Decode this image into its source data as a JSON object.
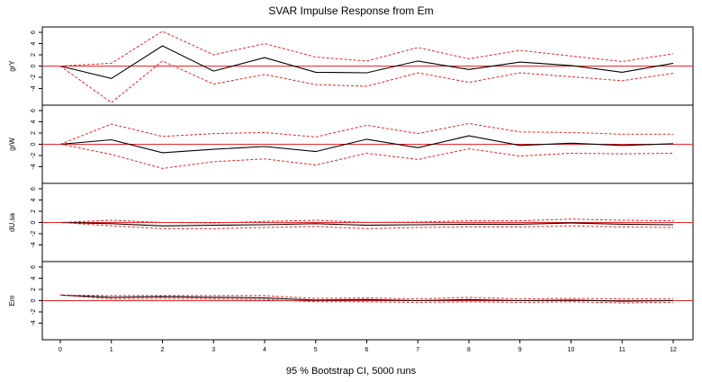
{
  "chart_data": {
    "type": "line",
    "title": "SVAR Impulse Response from Em",
    "xlabel": "95 % Bootstrap CI,  5000 runs",
    "x": [
      0,
      1,
      2,
      3,
      4,
      5,
      6,
      7,
      8,
      9,
      10,
      11,
      12
    ],
    "xlim": [
      0,
      12
    ],
    "ylim": [
      -6,
      6
    ],
    "yticks": [
      -4,
      -2,
      0,
      2,
      4,
      6
    ],
    "zero_line_color": "#e8262a",
    "response_color": "#000000",
    "ci_color": "#e8262a",
    "panels": [
      {
        "name": "grY",
        "series": [
          {
            "name": "response",
            "values": [
              0,
              -2.2,
              3.6,
              -0.9,
              1.5,
              -1.1,
              -1.2,
              0.9,
              -0.6,
              0.7,
              0.1,
              -1.1,
              0.5
            ]
          },
          {
            "name": "upper_ci",
            "values": [
              0,
              0.5,
              6.2,
              2.0,
              4.0,
              1.6,
              0.9,
              3.3,
              1.3,
              2.8,
              1.8,
              0.8,
              2.2
            ]
          },
          {
            "name": "lower_ci",
            "values": [
              0,
              -6.5,
              0.9,
              -3.2,
              -1.5,
              -3.3,
              -3.6,
              -1.2,
              -2.9,
              -1.2,
              -1.9,
              -2.6,
              -1.3
            ]
          }
        ]
      },
      {
        "name": "grW",
        "series": [
          {
            "name": "response",
            "values": [
              0,
              0.8,
              -1.5,
              -0.9,
              -0.4,
              -1.3,
              0.9,
              -0.6,
              1.5,
              -0.2,
              0.2,
              -0.2,
              0.1
            ]
          },
          {
            "name": "upper_ci",
            "values": [
              0,
              3.6,
              1.4,
              1.9,
              2.1,
              1.3,
              3.4,
              1.9,
              3.7,
              2.2,
              2.1,
              1.8,
              1.8
            ]
          },
          {
            "name": "lower_ci",
            "values": [
              0,
              -1.8,
              -4.3,
              -3.1,
              -2.6,
              -3.7,
              -1.6,
              -2.7,
              -0.8,
              -2.1,
              -1.6,
              -1.7,
              -1.6
            ]
          }
        ]
      },
      {
        "name": "dU.sa",
        "series": [
          {
            "name": "response",
            "values": [
              0,
              -0.2,
              -0.6,
              -0.5,
              -0.4,
              -0.2,
              -0.5,
              -0.4,
              -0.3,
              -0.3,
              -0.1,
              -0.3,
              -0.4
            ]
          },
          {
            "name": "upper_ci",
            "values": [
              0,
              0.4,
              0.0,
              -0.1,
              0.2,
              0.4,
              0.0,
              0.1,
              0.3,
              0.3,
              0.6,
              0.4,
              0.3
            ]
          },
          {
            "name": "lower_ci",
            "values": [
              0,
              -0.6,
              -1.1,
              -1.1,
              -0.9,
              -0.7,
              -1.1,
              -0.9,
              -0.8,
              -0.8,
              -0.6,
              -0.8,
              -0.9
            ]
          }
        ]
      },
      {
        "name": "Em",
        "series": [
          {
            "name": "response",
            "values": [
              1.0,
              0.6,
              0.7,
              0.6,
              0.5,
              0.1,
              0.2,
              0.0,
              0.2,
              0.0,
              0.1,
              -0.1,
              0.0
            ]
          },
          {
            "name": "upper_ci",
            "values": [
              1.0,
              0.9,
              0.9,
              0.9,
              0.9,
              0.4,
              0.5,
              0.3,
              0.6,
              0.3,
              0.4,
              0.3,
              0.3
            ]
          },
          {
            "name": "lower_ci",
            "values": [
              1.0,
              0.3,
              0.4,
              0.3,
              0.2,
              -0.2,
              -0.2,
              -0.3,
              -0.2,
              -0.3,
              -0.2,
              -0.4,
              -0.3
            ]
          }
        ]
      }
    ]
  }
}
